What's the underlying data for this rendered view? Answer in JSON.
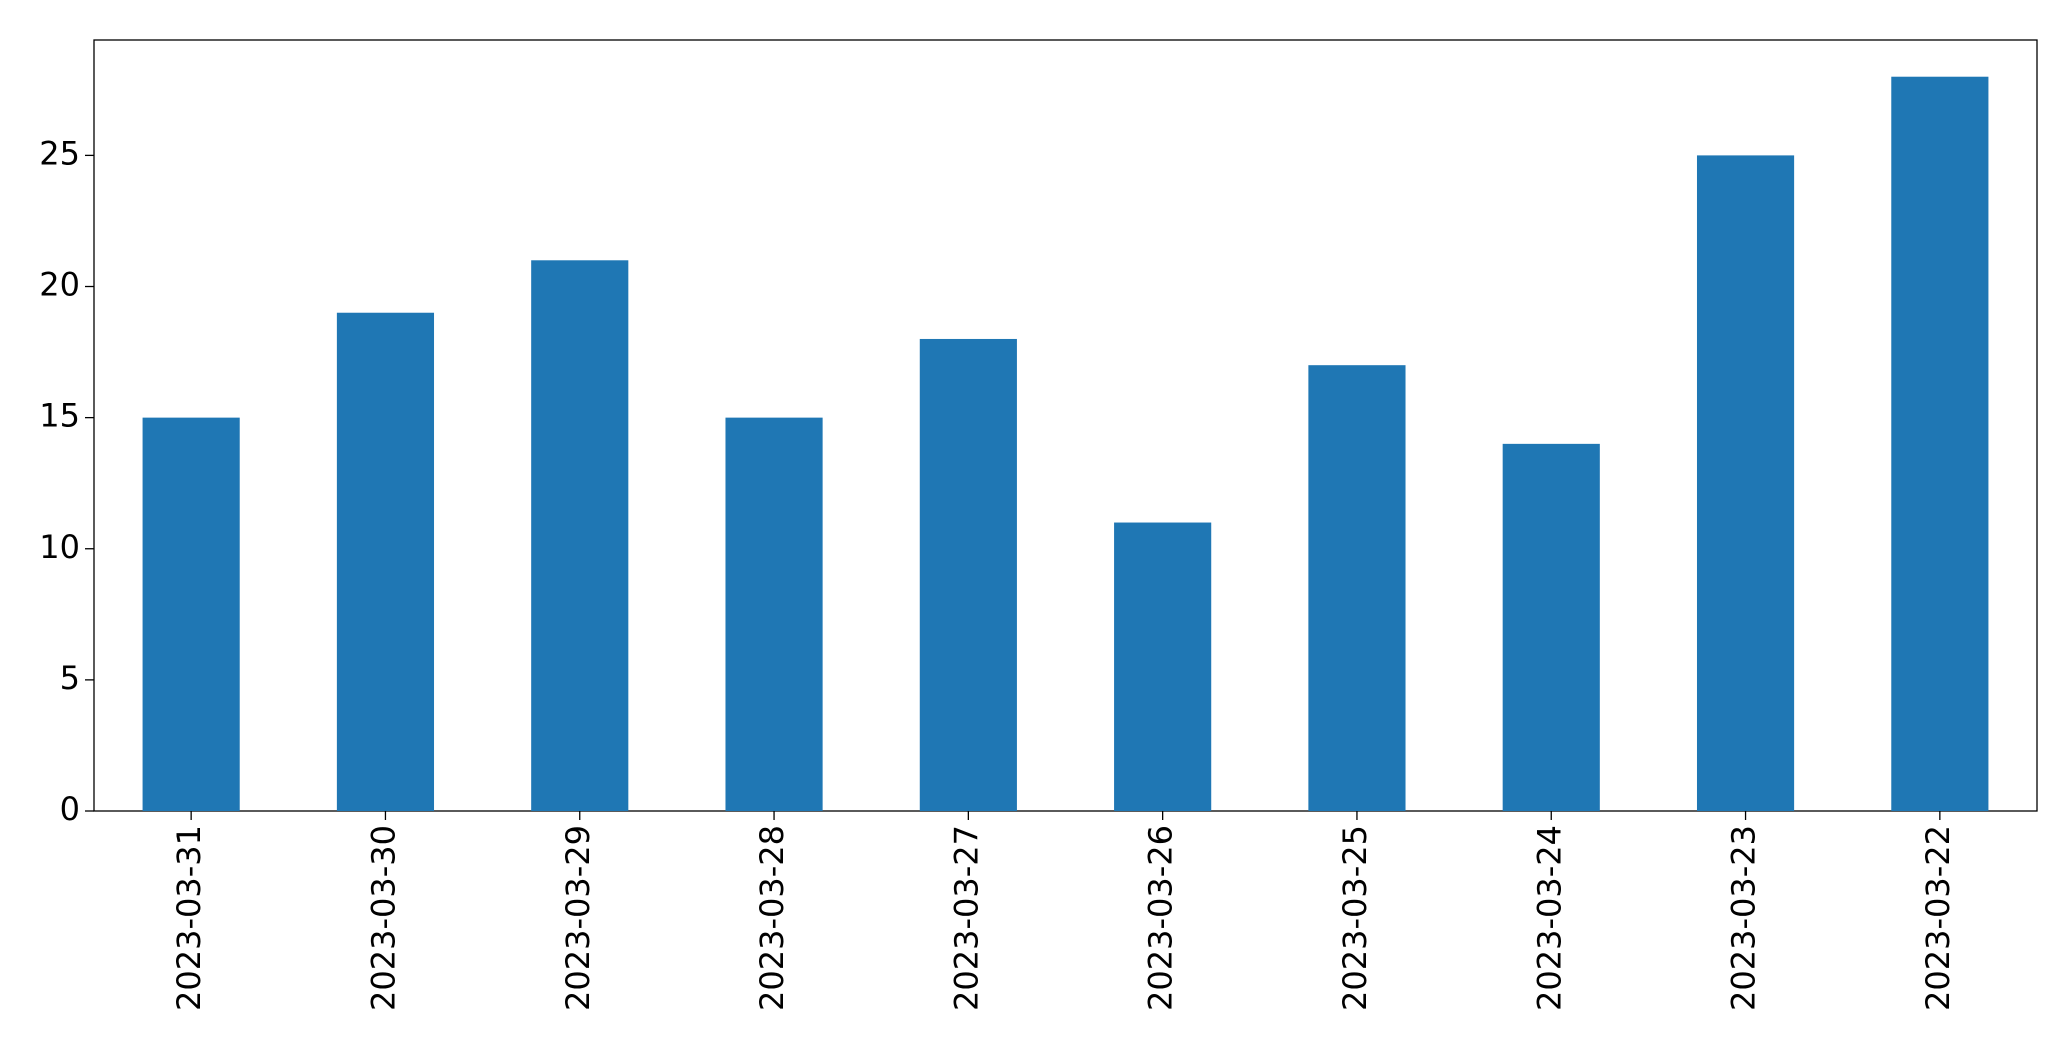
{
  "chart_data": {
    "type": "bar",
    "categories": [
      "2023-03-31",
      "2023-03-30",
      "2023-03-29",
      "2023-03-28",
      "2023-03-27",
      "2023-03-26",
      "2023-03-25",
      "2023-03-24",
      "2023-03-23",
      "2023-03-22"
    ],
    "values": [
      15,
      19,
      21,
      15,
      18,
      11,
      17,
      14,
      25,
      28
    ],
    "color": "#1f77b4",
    "ylim": [
      0,
      29.4
    ],
    "yticks": [
      0,
      5,
      10,
      15,
      20,
      25
    ],
    "grid": false
  }
}
